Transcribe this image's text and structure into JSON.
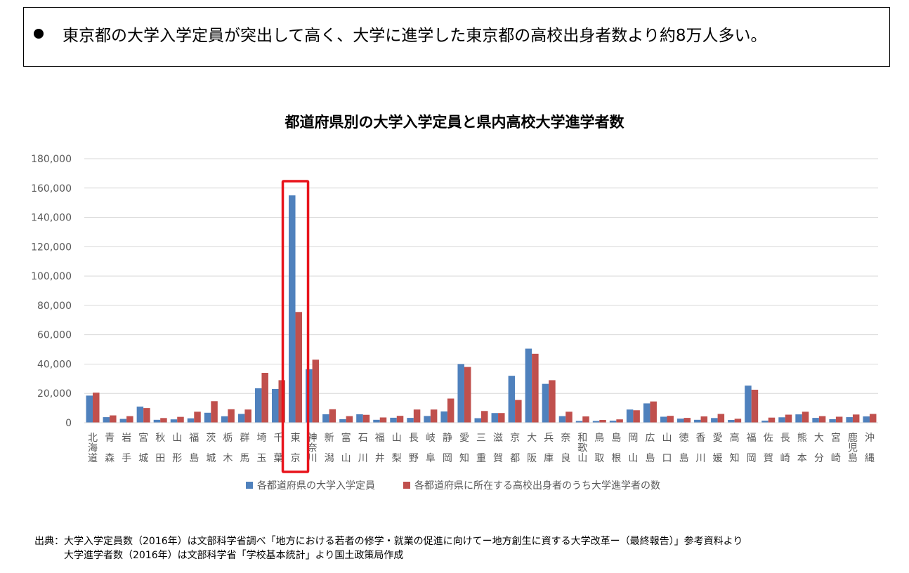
{
  "headline": {
    "text": "東京都の大学入学定員が突出して高く、大学に進学した東京都の高校出身者数より約8万人多い。"
  },
  "source": {
    "label": "出典：",
    "line1": "大学入学定員数（2016年）は文部科学省調べ「地方における若者の修学・就業の促進に向けてー地方創生に資する大学改革ー（最終報告）」参考資料より",
    "line2": "大学進学者数（2016年）は文部科学省「学校基本統計」より国土政策局作成"
  },
  "colors": {
    "series1": "#4F81BD",
    "series2": "#C0504D",
    "highlight": "#E8141C",
    "grid": "#D9D9D9",
    "axis_text": "#595959"
  },
  "chart_data": {
    "type": "bar",
    "title": "都道府県別の大学入学定員と県内高校大学進学者数",
    "ylim": [
      0,
      180000
    ],
    "yticks": [
      "0",
      "20,000",
      "40,000",
      "60,000",
      "80,000",
      "100,000",
      "120,000",
      "140,000",
      "160,000",
      "180,000"
    ],
    "ytick_values": [
      0,
      20000,
      40000,
      60000,
      80000,
      100000,
      120000,
      140000,
      160000,
      180000
    ],
    "grid": true,
    "legend_position": "bottom",
    "highlight_category": "東京",
    "categories": [
      "北海道",
      "青森",
      "岩手",
      "宮城",
      "秋田",
      "山形",
      "福島",
      "茨城",
      "栃木",
      "群馬",
      "埼玉",
      "千葉",
      "東京",
      "神奈川",
      "新潟",
      "富山",
      "石川",
      "福井",
      "山梨",
      "長野",
      "岐阜",
      "静岡",
      "愛知",
      "三重",
      "滋賀",
      "京都",
      "大阪",
      "兵庫",
      "奈良",
      "和歌山",
      "鳥取",
      "島根",
      "岡山",
      "広島",
      "山口",
      "徳島",
      "香川",
      "愛媛",
      "高知",
      "福岡",
      "佐賀",
      "長崎",
      "熊本",
      "大分",
      "宮崎",
      "鹿児島",
      "沖縄"
    ],
    "series": [
      {
        "name": "各都道府県の大学入学定員",
        "values": [
          18500,
          3800,
          2600,
          11000,
          2000,
          2300,
          3000,
          6800,
          4400,
          6000,
          23500,
          23000,
          155000,
          36500,
          5800,
          2400,
          5800,
          2000,
          3400,
          3300,
          4600,
          7700,
          40000,
          3100,
          6600,
          32000,
          50500,
          26500,
          4500,
          1200,
          1200,
          1400,
          9000,
          13200,
          4100,
          2800,
          2000,
          3200,
          1900,
          25300,
          1400,
          3700,
          5700,
          3300,
          2400,
          3800,
          4300
        ]
      },
      {
        "name": "各都道府県に所在する高校出身者のうち大学進学者の数",
        "values": [
          20500,
          5000,
          4500,
          10000,
          3200,
          4000,
          7500,
          14700,
          9200,
          9000,
          34000,
          29000,
          75500,
          43000,
          9200,
          4500,
          5400,
          3600,
          4700,
          9000,
          9000,
          16500,
          38000,
          8000,
          6600,
          15500,
          47000,
          29000,
          7500,
          4300,
          1900,
          2300,
          8500,
          14500,
          4700,
          3300,
          4300,
          6000,
          2700,
          22500,
          3500,
          5500,
          7500,
          4500,
          4100,
          5600,
          6000
        ]
      }
    ]
  }
}
